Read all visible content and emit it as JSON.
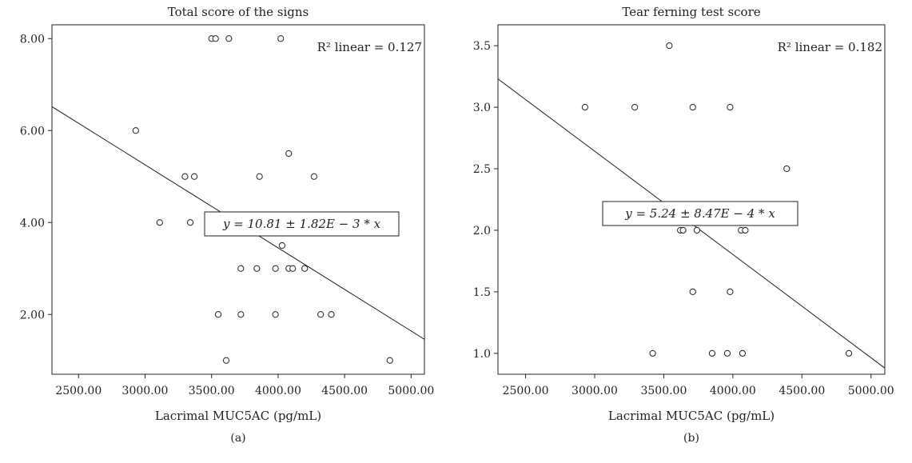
{
  "chart_data": [
    {
      "type": "scatter",
      "panel_label": "(a)",
      "title": "Total score of the signs",
      "xlabel": "Lacrimal MUC5AC (pg/mL)",
      "ylabel": "",
      "xlim": [
        2300,
        5100
      ],
      "ylim": [
        0.7,
        8.3
      ],
      "xticks": [
        "2500.00",
        "3000.00",
        "3500.00",
        "4000.00",
        "4500.00",
        "5000.00"
      ],
      "xtick_values": [
        2500,
        3000,
        3500,
        4000,
        4500,
        5000
      ],
      "yticks": [
        "2.00",
        "4.00",
        "6.00",
        "8.00"
      ],
      "ytick_values": [
        2,
        4,
        6,
        8
      ],
      "points": [
        {
          "x": 3500,
          "y": 8
        },
        {
          "x": 3530,
          "y": 8
        },
        {
          "x": 3630,
          "y": 8
        },
        {
          "x": 4020,
          "y": 8
        },
        {
          "x": 2930,
          "y": 6
        },
        {
          "x": 3300,
          "y": 5
        },
        {
          "x": 3370,
          "y": 5
        },
        {
          "x": 3860,
          "y": 5
        },
        {
          "x": 4270,
          "y": 5
        },
        {
          "x": 4080,
          "y": 5.5
        },
        {
          "x": 3110,
          "y": 4
        },
        {
          "x": 3340,
          "y": 4
        },
        {
          "x": 4030,
          "y": 3.5
        },
        {
          "x": 3720,
          "y": 3
        },
        {
          "x": 3840,
          "y": 3
        },
        {
          "x": 3980,
          "y": 3
        },
        {
          "x": 4080,
          "y": 3
        },
        {
          "x": 4110,
          "y": 3
        },
        {
          "x": 4200,
          "y": 3
        },
        {
          "x": 3550,
          "y": 2
        },
        {
          "x": 3720,
          "y": 2
        },
        {
          "x": 3980,
          "y": 2
        },
        {
          "x": 4320,
          "y": 2
        },
        {
          "x": 4400,
          "y": 2
        },
        {
          "x": 3610,
          "y": 1
        },
        {
          "x": 4840,
          "y": 1
        }
      ],
      "fit_line": {
        "x": [
          2300,
          5100
        ],
        "y": [
          6.52,
          1.46
        ]
      },
      "equation": "y = 10.81 ± 1.82E − 3 * x",
      "r2_label": "R² linear = 0.127"
    },
    {
      "type": "scatter",
      "panel_label": "(b)",
      "title": "Tear ferning test score",
      "xlabel": "Lacrimal MUC5AC (pg/mL)",
      "ylabel": "",
      "xlim": [
        2300,
        5100
      ],
      "ylim": [
        0.83,
        3.67
      ],
      "xticks": [
        "2500.00",
        "3000.00",
        "3500.00",
        "4000.00",
        "4500.00",
        "5000.00"
      ],
      "xtick_values": [
        2500,
        3000,
        3500,
        4000,
        4500,
        5000
      ],
      "yticks": [
        "1.0",
        "1.5",
        "2.0",
        "2.5",
        "3.0",
        "3.5"
      ],
      "ytick_values": [
        1.0,
        1.5,
        2.0,
        2.5,
        3.0,
        3.5
      ],
      "points": [
        {
          "x": 3540,
          "y": 3.5
        },
        {
          "x": 2930,
          "y": 3
        },
        {
          "x": 3290,
          "y": 3
        },
        {
          "x": 3710,
          "y": 3
        },
        {
          "x": 3980,
          "y": 3
        },
        {
          "x": 4390,
          "y": 2.5
        },
        {
          "x": 3620,
          "y": 2
        },
        {
          "x": 3640,
          "y": 2
        },
        {
          "x": 3740,
          "y": 2
        },
        {
          "x": 4060,
          "y": 2
        },
        {
          "x": 4090,
          "y": 2
        },
        {
          "x": 3710,
          "y": 1.5
        },
        {
          "x": 3980,
          "y": 1.5
        },
        {
          "x": 3420,
          "y": 1
        },
        {
          "x": 3850,
          "y": 1
        },
        {
          "x": 3960,
          "y": 1
        },
        {
          "x": 4070,
          "y": 1
        },
        {
          "x": 4840,
          "y": 1
        }
      ],
      "fit_line": {
        "x": [
          2300,
          5100
        ],
        "y": [
          3.23,
          0.88
        ]
      },
      "equation": "y = 5.24 ± 8.47E − 4 * x",
      "r2_label": "R² linear = 0.182"
    }
  ]
}
